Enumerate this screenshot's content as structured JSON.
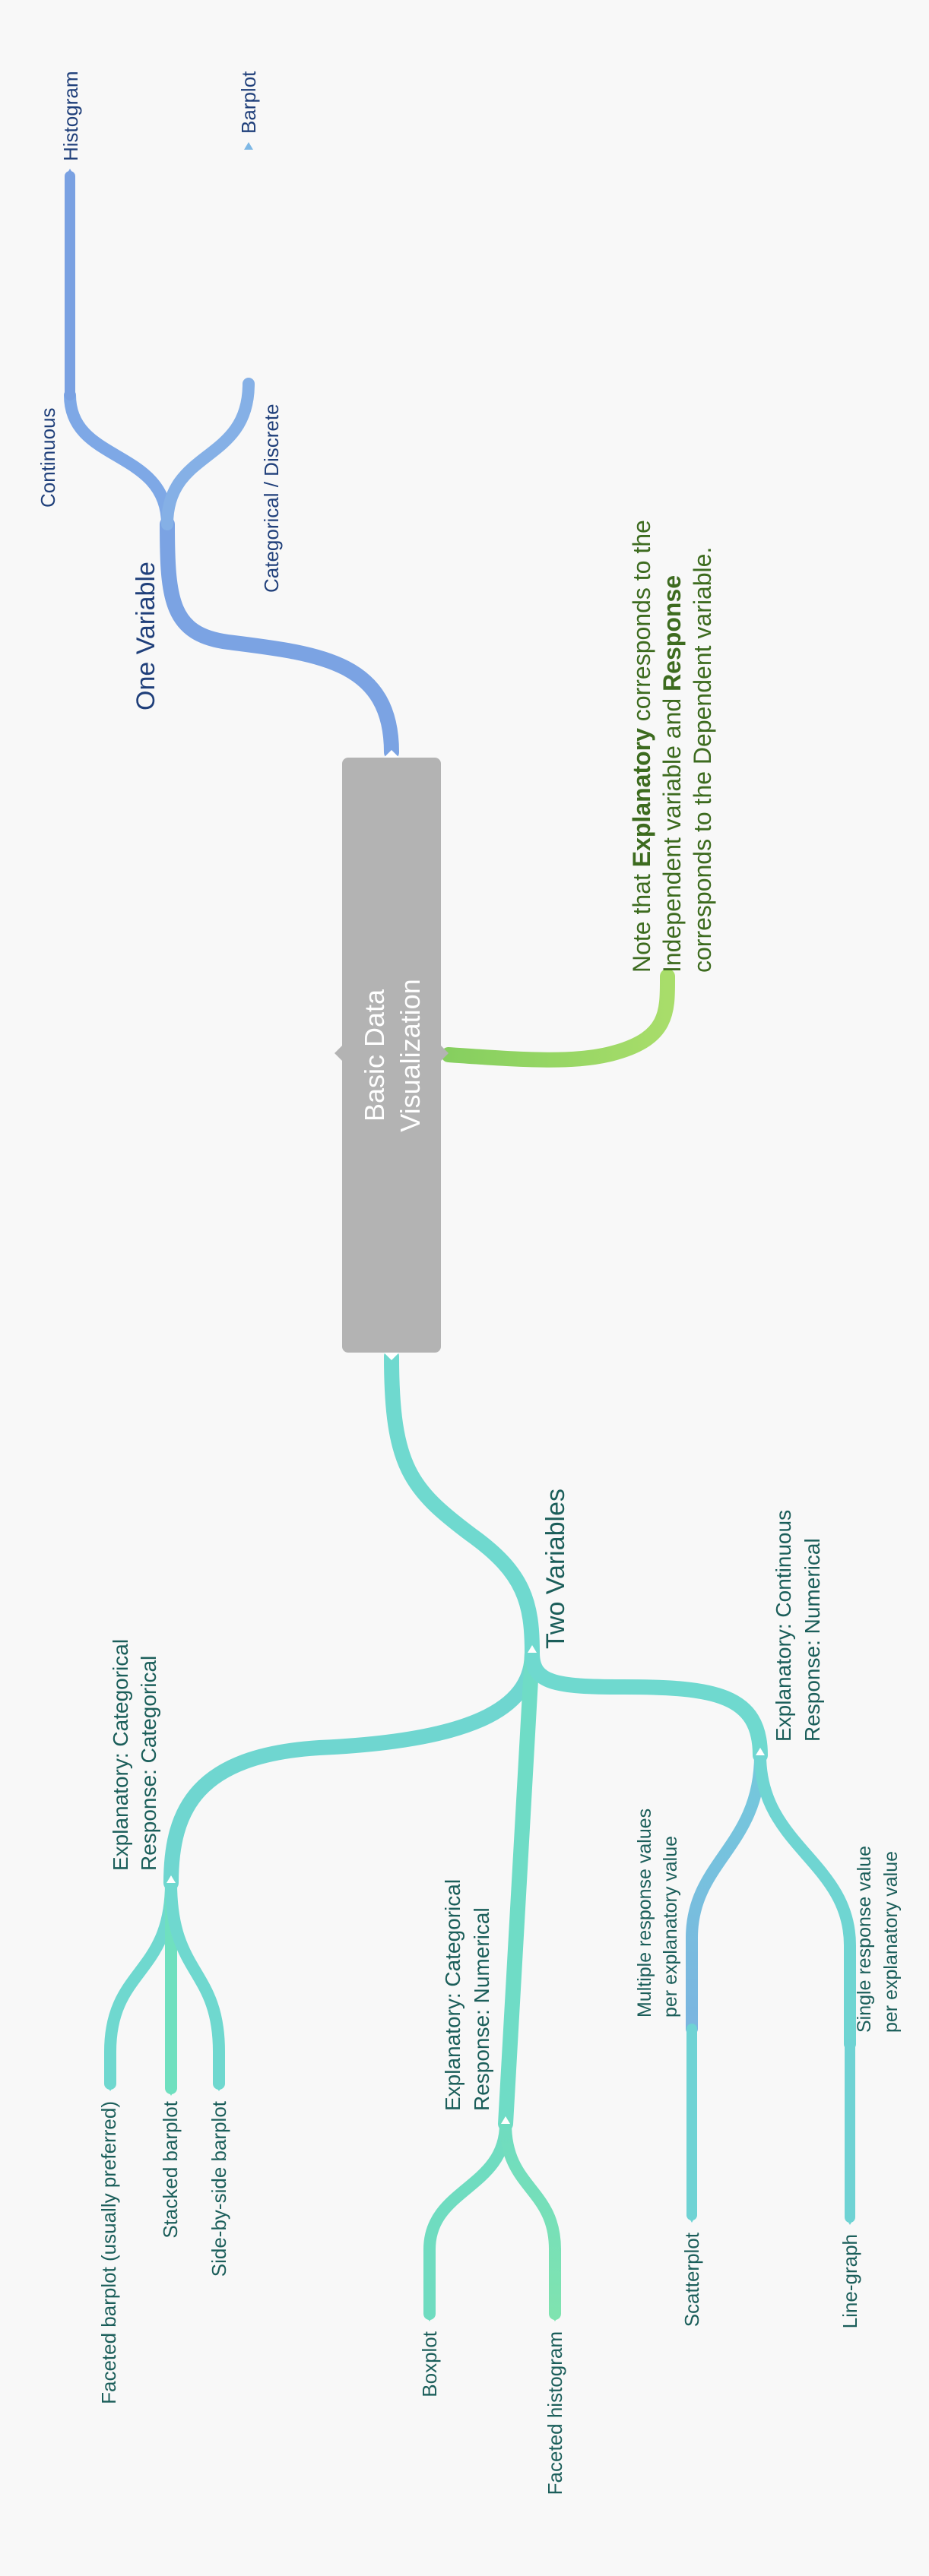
{
  "center": {
    "line1": "Basic Data",
    "line2": "Visualization"
  },
  "one_variable": {
    "label": "One Variable",
    "continuous": "Continuous",
    "histogram": "Histogram",
    "categorical": "Categorical / Discrete",
    "barplot": "Barplot"
  },
  "note": {
    "line1_a": "Note that ",
    "line1_b": "Explanatory",
    "line1_c": " corresponds to the",
    "line2_a": "Independent variable and ",
    "line2_b": "Response",
    "line3": "corresponds to the Dependent variable."
  },
  "two_variables": {
    "label": "Two Variables",
    "cat_cat": {
      "line1": "Explanatory: Categorical",
      "line2": "Response: Categorical",
      "faceted": "Faceted barplot (usually preferred)",
      "stacked": "Stacked barplot",
      "side": "Side-by-side barplot"
    },
    "cat_num": {
      "line1": "Explanatory: Categorical",
      "line2": "Response: Numerical",
      "boxplot": "Boxplot",
      "faceted_hist": "Faceted histogram"
    },
    "cont_num": {
      "line1": "Explanatory: Continuous",
      "line2": "Response: Numerical",
      "multi_line1": "Multiple response values",
      "multi_line2": "per explanatory value",
      "scatter": "Scatterplot",
      "single_line1": "Single response value",
      "single_line2": "per explanatory value",
      "linegraph": "Line-graph"
    }
  },
  "colors": {
    "blue": "#7ba3e3",
    "blue_light": "#85b6e6",
    "teal": "#6fd9cf",
    "teal_green": "#6fe0bf",
    "green": "#9ed468",
    "center_box": "#b3b3b3"
  }
}
